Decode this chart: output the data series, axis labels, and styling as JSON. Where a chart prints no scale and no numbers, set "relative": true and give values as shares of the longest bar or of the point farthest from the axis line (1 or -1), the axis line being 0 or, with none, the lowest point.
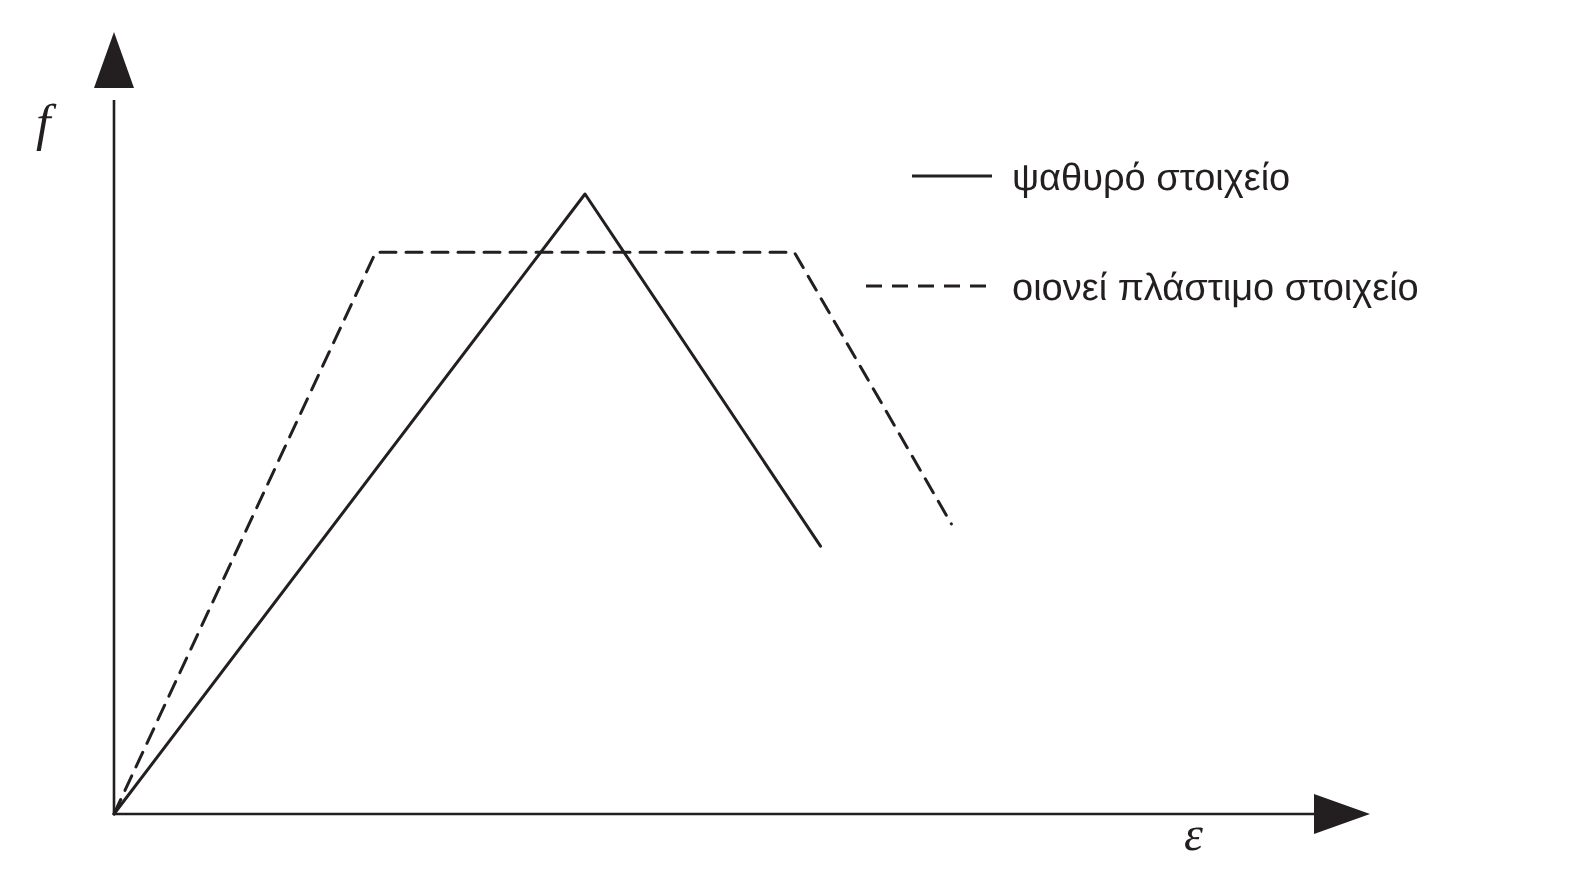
{
  "chart_data": {
    "type": "line",
    "relative": true,
    "xlabel": "ε",
    "ylabel": "f",
    "legend": "top right",
    "marker": "none",
    "categories": [
      null,
      null,
      null,
      null,
      null,
      null,
      null,
      null,
      null,
      null,
      null,
      null,
      null,
      null,
      null,
      null,
      null,
      null,
      null,
      null,
      null,
      null,
      null,
      null,
      null,
      null,
      null,
      null,
      null,
      null,
      null,
      null,
      null,
      null,
      null,
      null,
      null,
      null,
      null,
      null,
      null,
      null,
      null,
      null,
      null,
      null,
      null,
      null,
      null
    ],
    "series": [
      {
        "name": "ψαθυρό στοιχείο",
        "color": "#231f20",
        "line_style": "solid",
        "values": [
          0,
          null,
          null,
          null,
          null,
          null,
          null,
          null,
          null,
          null,
          null,
          null,
          null,
          null,
          null,
          null,
          null,
          null,
          1,
          null,
          null,
          null,
          null,
          null,
          null,
          null,
          null,
          0.432,
          null,
          null,
          null,
          null,
          null,
          null,
          null,
          null,
          null,
          null,
          null,
          null,
          null,
          null,
          null,
          null,
          null,
          null,
          null,
          null,
          null
        ]
      },
      {
        "name": "οιονεί πλάστιμο στοιχείο",
        "color": "#231f20",
        "line_style": "dashed",
        "values": [
          0,
          null,
          null,
          null,
          null,
          null,
          null,
          null,
          null,
          null,
          0.906,
          null,
          null,
          null,
          null,
          null,
          null,
          null,
          null,
          null,
          null,
          null,
          null,
          null,
          null,
          null,
          0.906,
          null,
          null,
          null,
          null,
          null,
          0.468,
          null,
          null,
          null,
          null,
          null,
          null,
          null,
          null,
          null,
          null,
          null,
          null,
          null,
          null,
          null,
          null
        ]
      }
    ]
  }
}
